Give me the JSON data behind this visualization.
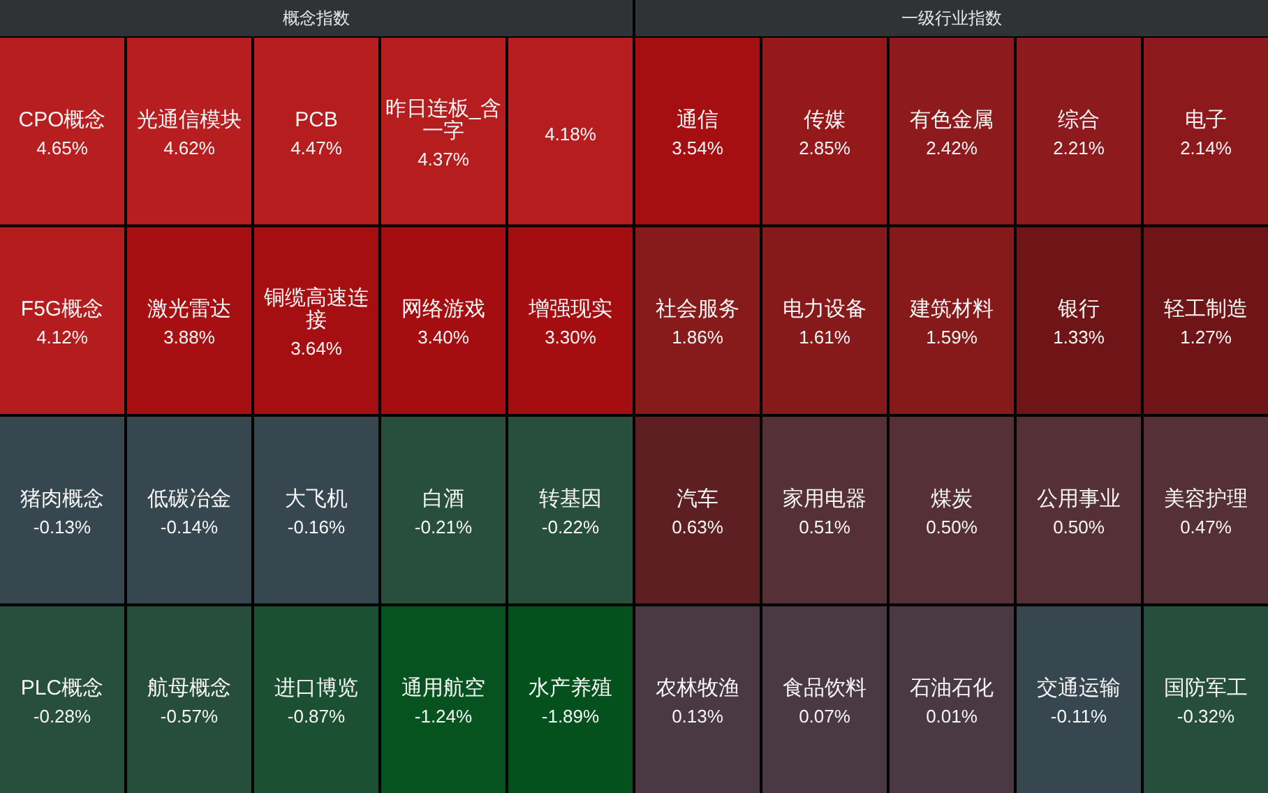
{
  "chart_data": [
    {
      "type": "other",
      "title": "概念指数",
      "categories": [
        "CPO概念",
        "光通信模块",
        "PCB",
        "昨日连板_含一字",
        null,
        "F5G概念",
        "激光雷达",
        "铜缆高速连接",
        "网络游戏",
        "增强现实",
        "猪肉概念",
        "低碳冶金",
        "大飞机",
        "白酒",
        "转基因",
        "PLC概念",
        "航母概念",
        "进口博览",
        "通用航空",
        "水产养殖"
      ],
      "values": [
        4.65,
        4.62,
        4.47,
        4.37,
        4.18,
        4.12,
        3.88,
        3.64,
        3.4,
        3.3,
        -0.13,
        -0.14,
        -0.16,
        -0.21,
        -0.22,
        -0.28,
        -0.57,
        -0.87,
        -1.24,
        -1.89
      ],
      "value_labels": [
        "4.65%",
        "4.62%",
        "4.47%",
        "4.37%",
        "4.18%",
        "4.12%",
        "3.88%",
        "3.64%",
        "3.40%",
        "3.30%",
        "-0.13%",
        "-0.14%",
        "-0.16%",
        "-0.21%",
        "-0.22%",
        "-0.28%",
        "-0.57%",
        "-0.87%",
        "-1.24%",
        "-1.89%"
      ]
    },
    {
      "type": "other",
      "title": "一级行业指数",
      "categories": [
        "通信",
        "传媒",
        "有色金属",
        "综合",
        "电子",
        "社会服务",
        "电力设备",
        "建筑材料",
        "银行",
        "轻工制造",
        "汽车",
        "家用电器",
        "煤炭",
        "公用事业",
        "美容护理",
        "农林牧渔",
        "食品饮料",
        "石油石化",
        "交通运输",
        "国防军工"
      ],
      "values": [
        3.54,
        2.85,
        2.42,
        2.21,
        2.14,
        1.86,
        1.61,
        1.59,
        1.33,
        1.27,
        0.63,
        0.51,
        0.5,
        0.5,
        0.47,
        0.13,
        0.07,
        0.01,
        -0.11,
        -0.32
      ],
      "value_labels": [
        "3.54%",
        "2.85%",
        "2.42%",
        "2.21%",
        "2.14%",
        "1.86%",
        "1.61%",
        "1.59%",
        "1.33%",
        "1.27%",
        "0.63%",
        "0.51%",
        "0.50%",
        "0.50%",
        "0.47%",
        "0.13%",
        "0.07%",
        "0.01%",
        "-0.11%",
        "-0.32%"
      ]
    }
  ]
}
